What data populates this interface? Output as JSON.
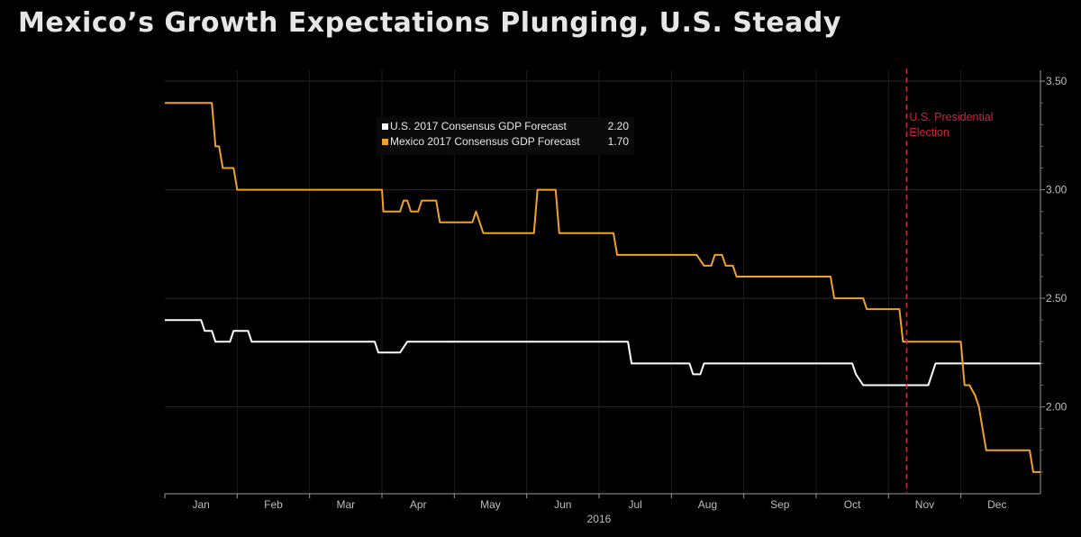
{
  "chart_data": {
    "type": "line",
    "title": "Mexico’s Growth Expectations Plunging, U.S. Steady",
    "year_label": "2016",
    "months": [
      "Jan",
      "Feb",
      "Mar",
      "Apr",
      "May",
      "Jun",
      "Jul",
      "Aug",
      "Sep",
      "Oct",
      "Nov",
      "Dec"
    ],
    "y_ticks": [
      "3.50",
      "3.00",
      "2.50",
      "2.00"
    ],
    "y_tick_values": [
      3.5,
      3.0,
      2.5,
      2.0
    ],
    "ylim": [
      1.6,
      3.55
    ],
    "x_range_months": [
      -0.5,
      11.6
    ],
    "legend": [
      {
        "label": "U.S. 2017 Consensus GDP Forecast",
        "last": "2.20",
        "color": "#ffffff"
      },
      {
        "label": "Mexico 2017 Consensus GDP Forecast",
        "last": "1.70",
        "color": "#f2a02c"
      }
    ],
    "annotation": {
      "lines": [
        "U.S. Presidential",
        "Election"
      ],
      "x_month": 9.75,
      "color": "#d0223c"
    },
    "series": [
      {
        "name": "U.S. 2017 Consensus GDP Forecast",
        "color": "#ffffff",
        "points": [
          [
            -0.5,
            2.4
          ],
          [
            0.0,
            2.4
          ],
          [
            0.05,
            2.35
          ],
          [
            0.15,
            2.35
          ],
          [
            0.2,
            2.3
          ],
          [
            0.4,
            2.3
          ],
          [
            0.45,
            2.35
          ],
          [
            0.65,
            2.35
          ],
          [
            0.7,
            2.3
          ],
          [
            2.4,
            2.3
          ],
          [
            2.45,
            2.25
          ],
          [
            2.75,
            2.25
          ],
          [
            2.85,
            2.3
          ],
          [
            5.9,
            2.3
          ],
          [
            5.95,
            2.2
          ],
          [
            6.75,
            2.2
          ],
          [
            6.8,
            2.15
          ],
          [
            6.9,
            2.15
          ],
          [
            6.95,
            2.2
          ],
          [
            9.0,
            2.2
          ],
          [
            9.05,
            2.15
          ],
          [
            9.15,
            2.1
          ],
          [
            10.05,
            2.1
          ],
          [
            10.15,
            2.2
          ],
          [
            11.6,
            2.2
          ]
        ]
      },
      {
        "name": "Mexico 2017 Consensus GDP Forecast",
        "color": "#f2a02c",
        "points": [
          [
            -0.5,
            3.4
          ],
          [
            0.15,
            3.4
          ],
          [
            0.2,
            3.2
          ],
          [
            0.25,
            3.2
          ],
          [
            0.3,
            3.1
          ],
          [
            0.45,
            3.1
          ],
          [
            0.5,
            3.0
          ],
          [
            2.5,
            3.0
          ],
          [
            2.52,
            2.9
          ],
          [
            2.75,
            2.9
          ],
          [
            2.8,
            2.95
          ],
          [
            2.85,
            2.95
          ],
          [
            2.9,
            2.9
          ],
          [
            3.0,
            2.9
          ],
          [
            3.05,
            2.95
          ],
          [
            3.25,
            2.95
          ],
          [
            3.3,
            2.85
          ],
          [
            3.75,
            2.85
          ],
          [
            3.8,
            2.9
          ],
          [
            3.9,
            2.8
          ],
          [
            4.6,
            2.8
          ],
          [
            4.65,
            3.0
          ],
          [
            4.9,
            3.0
          ],
          [
            4.95,
            2.8
          ],
          [
            5.7,
            2.8
          ],
          [
            5.75,
            2.7
          ],
          [
            6.85,
            2.7
          ],
          [
            6.95,
            2.65
          ],
          [
            7.05,
            2.65
          ],
          [
            7.1,
            2.7
          ],
          [
            7.2,
            2.7
          ],
          [
            7.25,
            2.65
          ],
          [
            7.35,
            2.65
          ],
          [
            7.4,
            2.6
          ],
          [
            8.7,
            2.6
          ],
          [
            8.75,
            2.5
          ],
          [
            9.15,
            2.5
          ],
          [
            9.2,
            2.45
          ],
          [
            9.65,
            2.45
          ],
          [
            9.7,
            2.3
          ],
          [
            10.5,
            2.3
          ],
          [
            10.55,
            2.1
          ],
          [
            10.62,
            2.1
          ],
          [
            10.7,
            2.05
          ],
          [
            10.75,
            2.0
          ],
          [
            10.8,
            1.9
          ],
          [
            10.85,
            1.8
          ],
          [
            11.45,
            1.8
          ],
          [
            11.5,
            1.7
          ],
          [
            11.6,
            1.7
          ]
        ]
      }
    ]
  }
}
